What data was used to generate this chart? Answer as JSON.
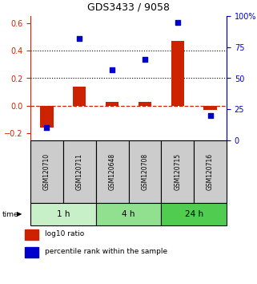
{
  "title": "GDS3433 / 9058",
  "samples": [
    "GSM120710",
    "GSM120711",
    "GSM120648",
    "GSM120708",
    "GSM120715",
    "GSM120716"
  ],
  "log10_ratio": [
    -0.155,
    0.14,
    0.03,
    0.03,
    0.47,
    -0.03
  ],
  "percentile_rank": [
    10,
    82,
    57,
    65,
    95,
    20
  ],
  "left_ylim": [
    -0.25,
    0.65
  ],
  "right_ylim": [
    0,
    100
  ],
  "left_yticks": [
    -0.2,
    0,
    0.2,
    0.4,
    0.6
  ],
  "right_yticks": [
    0,
    25,
    50,
    75,
    100
  ],
  "hline_dotted": [
    0.2,
    0.4
  ],
  "hline_dashed_red": 0,
  "time_groups": [
    {
      "label": "1 h",
      "start": 0,
      "end": 2,
      "color": "#c8f0c8"
    },
    {
      "label": "4 h",
      "start": 2,
      "end": 4,
      "color": "#90e090"
    },
    {
      "label": "24 h",
      "start": 4,
      "end": 6,
      "color": "#50cc50"
    }
  ],
  "bar_color": "#cc2200",
  "dot_color": "#0000cc",
  "bar_width": 0.4,
  "dot_size": 22,
  "right_axis_color": "#0000cc",
  "sample_box_color": "#cccccc",
  "left_label_color": "#cc2200",
  "fig_width": 3.21,
  "fig_height": 3.54,
  "dpi": 100
}
